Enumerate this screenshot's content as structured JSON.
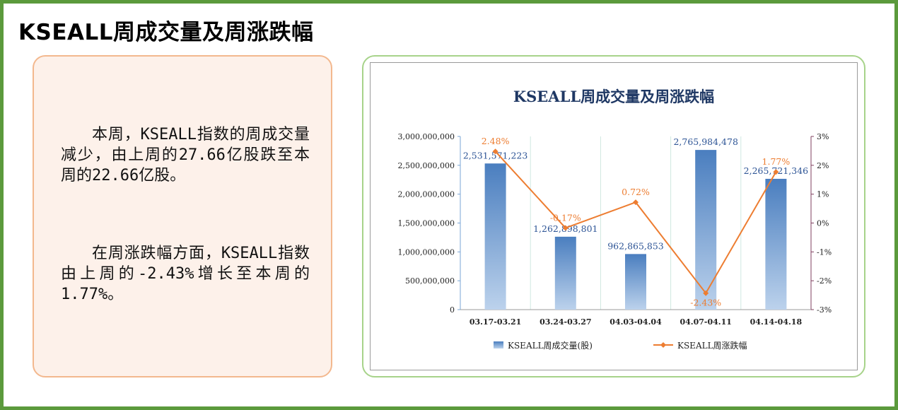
{
  "page": {
    "title": "KSEALL周成交量及周涨跌幅"
  },
  "summary": {
    "paragraph1": "本周，KSEALL指数的周成交量减少，由上周的27.66亿股跌至本周的22.66亿股。",
    "paragraph2": "在周涨跌幅方面，KSEALL指数由上周的-2.43%增长至本周的1.77%。"
  },
  "colors": {
    "frame": "#5b9a3c",
    "bar": "#4a7ebf",
    "line": "#ed7d31",
    "title": "#1f3864",
    "right_axis": "#7f3f5f"
  },
  "chart_data": {
    "type": "bar",
    "title": "KSEALL周成交量及周涨跌幅",
    "categories": [
      "03.17-03.21",
      "03.24-03.27",
      "04.03-04.04",
      "04.07-04.11",
      "04.14-04.18"
    ],
    "series": [
      {
        "name": "KSEALL周成交量(股)",
        "type": "bar",
        "axis": "left",
        "values": [
          2531571223,
          1262898801,
          962865853,
          2765984478,
          2265721346
        ],
        "labels": [
          "2,531,571,223",
          "1,262,898,801",
          "962,865,853",
          "2,765,984,478",
          "2,265,721,346"
        ]
      },
      {
        "name": "KSEALL周涨跌幅",
        "type": "line",
        "axis": "right",
        "values": [
          2.48,
          -0.17,
          0.72,
          -2.43,
          1.77
        ],
        "labels": [
          "2.48%",
          "-0.17%",
          "0.72%",
          "-2.43%",
          "1.77%"
        ]
      }
    ],
    "y_left": {
      "min": 0,
      "max": 3000000000,
      "ticks": [
        "0",
        "500,000,000",
        "1,000,000,000",
        "1,500,000,000",
        "2,000,000,000",
        "2,500,000,000",
        "3,000,000,000"
      ]
    },
    "y_right": {
      "min": -3,
      "max": 3,
      "ticks": [
        "-3%",
        "-2%",
        "-1%",
        "0%",
        "1%",
        "2%",
        "3%"
      ]
    },
    "legend_position": "bottom",
    "grid": "vertical"
  }
}
